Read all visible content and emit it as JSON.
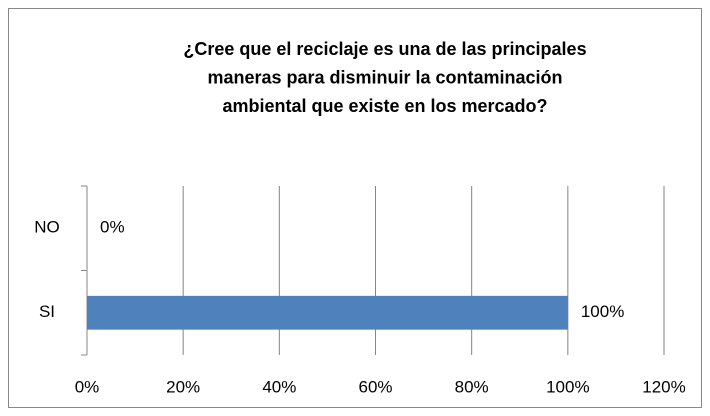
{
  "chart_data": {
    "type": "barh",
    "title": [
      "¿Cree que el reciclaje es una de las principales",
      "maneras para disminuir la contaminación",
      "ambiental que existe en los  mercado?"
    ],
    "categories": [
      "NO",
      "SI"
    ],
    "values": [
      0,
      100
    ],
    "value_labels": [
      "0%",
      "100%"
    ],
    "color": "#4f81bd",
    "xlim": [
      0,
      120
    ],
    "xticks": [
      {
        "value": 0,
        "label": "0%"
      },
      {
        "value": 20,
        "label": "20%"
      },
      {
        "value": 40,
        "label": "40%"
      },
      {
        "value": 60,
        "label": "60%"
      },
      {
        "value": 80,
        "label": "80%"
      },
      {
        "value": 100,
        "label": "100%"
      },
      {
        "value": 120,
        "label": "120%"
      }
    ],
    "grid": true
  }
}
